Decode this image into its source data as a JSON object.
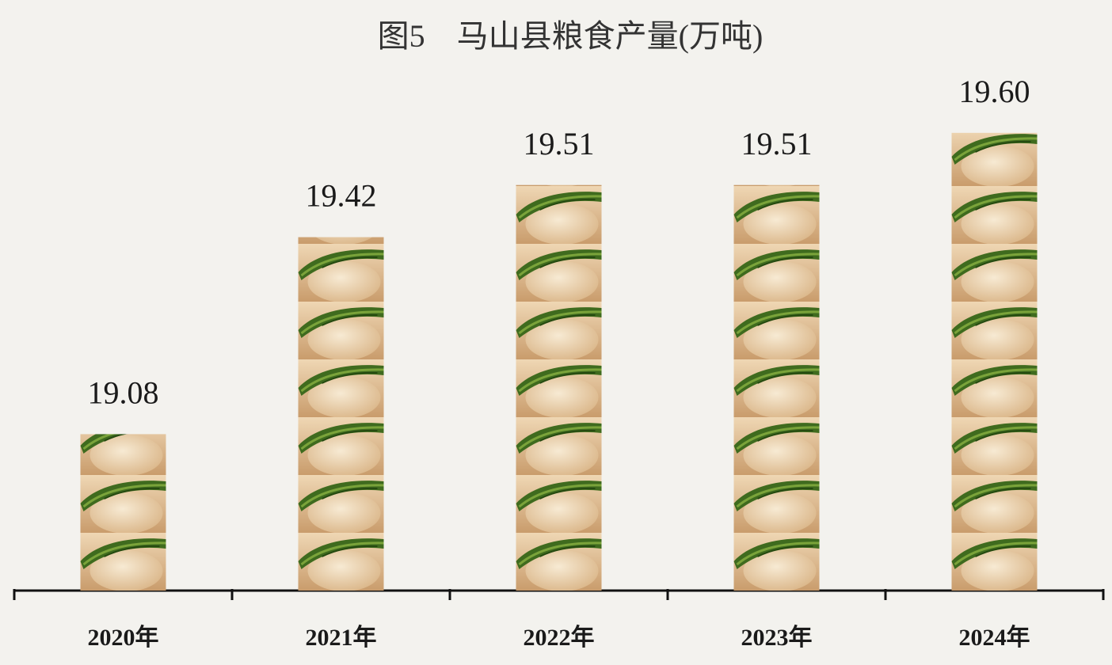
{
  "chart_data": {
    "type": "bar",
    "title": "图5　马山县粮食产量(万吨)",
    "categories": [
      "2020年",
      "2021年",
      "2022年",
      "2023年",
      "2024年"
    ],
    "values": [
      19.08,
      19.42,
      19.51,
      19.51,
      19.6
    ],
    "value_labels": [
      "19.08",
      "19.42",
      "19.51",
      "19.51",
      "19.60"
    ],
    "ylim": [
      18.81,
      19.72
    ]
  }
}
